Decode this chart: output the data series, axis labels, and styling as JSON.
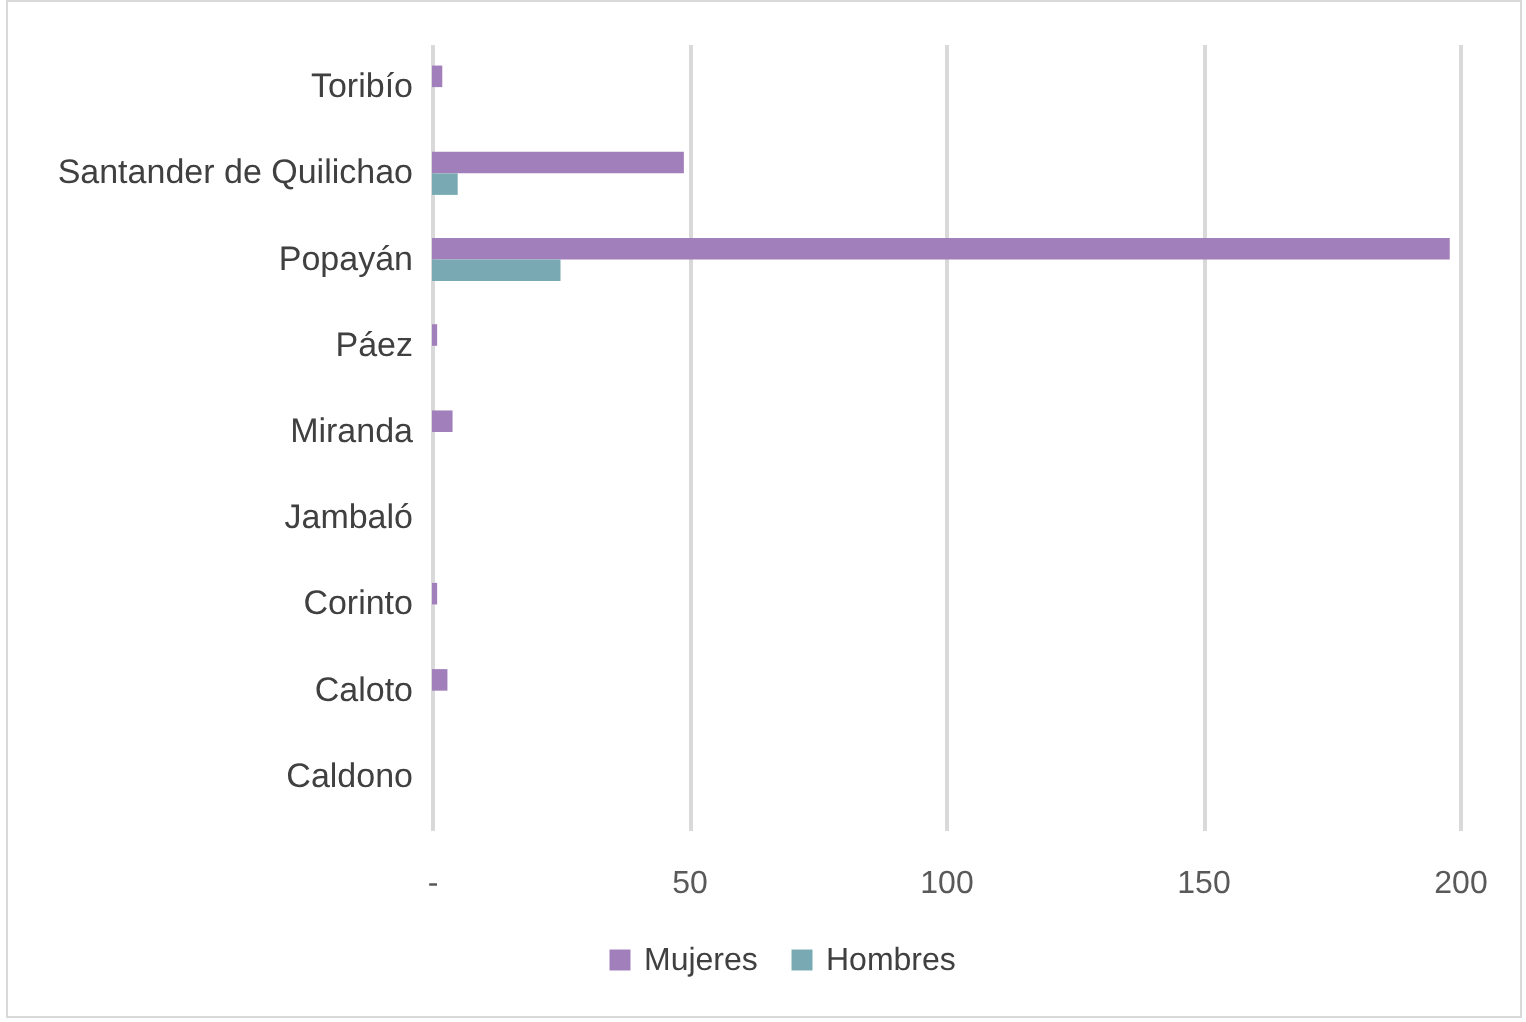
{
  "chart_data": {
    "type": "bar",
    "orientation": "horizontal",
    "categories": [
      "Toribío",
      "Santander de Quilichao",
      "Popayán",
      "Páez",
      "Miranda",
      "Jambaló",
      "Corinto",
      "Caloto",
      "Caldono"
    ],
    "series": [
      {
        "name": "Mujeres",
        "color": "#a17fbb",
        "values": [
          2,
          49,
          198,
          1,
          4,
          0,
          1,
          3,
          0
        ]
      },
      {
        "name": "Hombres",
        "color": "#79a9b2",
        "values": [
          0,
          5,
          25,
          0,
          0,
          0,
          0,
          0,
          0
        ]
      }
    ],
    "xlim": [
      0,
      200
    ],
    "xticks": [
      {
        "value": 0,
        "label": "-"
      },
      50,
      100,
      150,
      200
    ],
    "grid": "x",
    "legend": "bottom"
  }
}
